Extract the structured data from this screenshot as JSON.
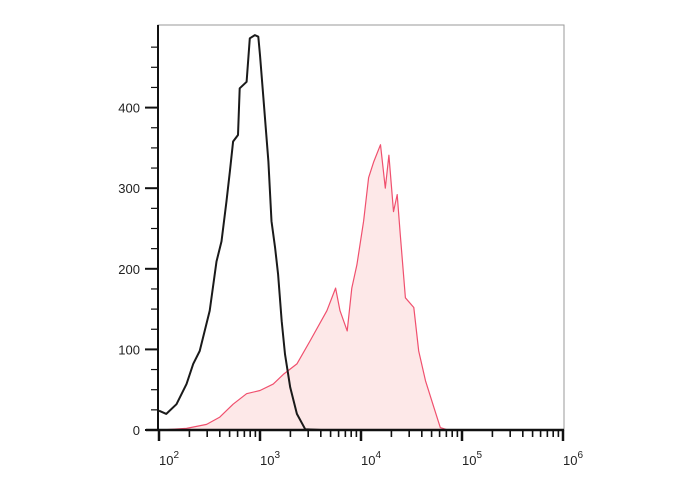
{
  "chart_data": {
    "type": "area",
    "title": "",
    "xlabel": "",
    "ylabel": "",
    "x_scale": "log",
    "xlim": [
      100,
      1000000
    ],
    "ylim": [
      0,
      500
    ],
    "grid": false,
    "x_ticks": [
      {
        "value": 100,
        "base": "10",
        "exp": "2"
      },
      {
        "value": 1000,
        "base": "10",
        "exp": "3"
      },
      {
        "value": 10000,
        "base": "10",
        "exp": "4"
      },
      {
        "value": 100000,
        "base": "10",
        "exp": "5"
      },
      {
        "value": 1000000,
        "base": "10",
        "exp": "6"
      }
    ],
    "y_ticks": [
      "0",
      "100",
      "200",
      "300",
      "400"
    ],
    "series": [
      {
        "color": "#1a1a1a",
        "filled": false,
        "x": [
          100,
          118,
          149,
          187,
          218,
          253,
          318,
          371,
          416,
          466,
          503,
          542,
          605,
          630,
          737,
          793,
          890,
          961,
          1000,
          1080,
          1210,
          1300,
          1410,
          1510,
          1640,
          1770,
          1990,
          2320,
          2800,
          4000,
          10000,
          100000,
          1000000
        ],
        "y": [
          24,
          20,
          32,
          57,
          82,
          98,
          148,
          209,
          234,
          284,
          321,
          358,
          366,
          424,
          432,
          486,
          490,
          488,
          465,
          412,
          333,
          259,
          226,
          193,
          135,
          94,
          53,
          20,
          1,
          0,
          0,
          0,
          0
        ]
      },
      {
        "color": "#f0506e",
        "fill": "#fde8e8",
        "filled": true,
        "x": [
          105,
          187,
          296,
          400,
          542,
          737,
          1000,
          1350,
          1700,
          2320,
          3150,
          4600,
          5600,
          6200,
          7300,
          8100,
          9100,
          10600,
          11900,
          13400,
          15600,
          17400,
          18900,
          21000,
          22800,
          24500,
          27500,
          33300,
          37300,
          43500,
          52700,
          61000,
          72000
        ],
        "y": [
          0,
          2,
          7,
          16,
          32,
          45,
          49,
          57,
          69,
          82,
          111,
          148,
          176,
          148,
          123,
          176,
          205,
          259,
          313,
          333,
          354,
          300,
          341,
          271,
          292,
          242,
          164,
          152,
          98,
          61,
          28,
          3,
          0
        ]
      }
    ]
  }
}
